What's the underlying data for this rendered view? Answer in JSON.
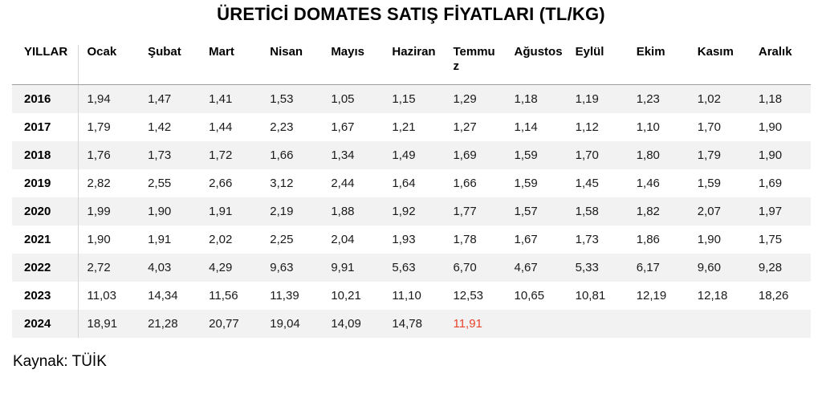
{
  "title": "ÜRETİCİ DOMATES SATIŞ FİYATLARI (TL/KG)",
  "source_note": "Kaynak: TÜİK",
  "table": {
    "year_header": "YILLAR",
    "month_headers": [
      "Ocak",
      "Şubat",
      "Mart",
      "Nisan",
      "Mayıs",
      "Haziran",
      "Temmuz",
      "Ağustos",
      "Eylül",
      "Ekim",
      "Kasım",
      "Aralık"
    ],
    "rows": [
      {
        "year": "2016",
        "values": [
          "1,94",
          "1,47",
          "1,41",
          "1,53",
          "1,05",
          "1,15",
          "1,29",
          "1,18",
          "1,19",
          "1,23",
          "1,02",
          "1,18"
        ]
      },
      {
        "year": "2017",
        "values": [
          "1,79",
          "1,42",
          "1,44",
          "2,23",
          "1,67",
          "1,21",
          "1,27",
          "1,14",
          "1,12",
          "1,10",
          "1,70",
          "1,90"
        ]
      },
      {
        "year": "2018",
        "values": [
          "1,76",
          "1,73",
          "1,72",
          "1,66",
          "1,34",
          "1,49",
          "1,69",
          "1,59",
          "1,70",
          "1,80",
          "1,79",
          "1,90"
        ]
      },
      {
        "year": "2019",
        "values": [
          "2,82",
          "2,55",
          "2,66",
          "3,12",
          "2,44",
          "1,64",
          "1,66",
          "1,59",
          "1,45",
          "1,46",
          "1,59",
          "1,69"
        ]
      },
      {
        "year": "2020",
        "values": [
          "1,99",
          "1,90",
          "1,91",
          "2,19",
          "1,88",
          "1,92",
          "1,77",
          "1,57",
          "1,58",
          "1,82",
          "2,07",
          "1,97"
        ]
      },
      {
        "year": "2021",
        "values": [
          "1,90",
          "1,91",
          "2,02",
          "2,25",
          "2,04",
          "1,93",
          "1,78",
          "1,67",
          "1,73",
          "1,86",
          "1,90",
          "1,75"
        ]
      },
      {
        "year": "2022",
        "values": [
          "2,72",
          "4,03",
          "4,29",
          "9,63",
          "9,91",
          "5,63",
          "6,70",
          "4,67",
          "5,33",
          "6,17",
          "9,60",
          "9,28"
        ]
      },
      {
        "year": "2023",
        "values": [
          "11,03",
          "14,34",
          "11,56",
          "11,39",
          "10,21",
          "11,10",
          "12,53",
          "10,65",
          "10,81",
          "12,19",
          "12,18",
          "18,26"
        ]
      },
      {
        "year": "2024",
        "values": [
          "18,91",
          "21,28",
          "20,77",
          "19,04",
          "14,09",
          "14,78",
          "11,91",
          "",
          "",
          "",
          "",
          ""
        ]
      }
    ],
    "highlight": {
      "year": "2024",
      "month": "Temmuz",
      "month_index": 6,
      "value": "11,91",
      "color": "#e8432d"
    }
  },
  "colors": {
    "row_stripe": "#f2f2f2",
    "divider": "#d4d4d4",
    "header_border": "#9d9d9d",
    "highlight_red": "#e8432d"
  },
  "chart_data": {
    "type": "table",
    "title": "ÜRETİCİ DOMATES SATIŞ FİYATLARI (TL/KG)",
    "source": "Kaynak: TÜİK",
    "columns": [
      "YILLAR",
      "Ocak",
      "Şubat",
      "Mart",
      "Nisan",
      "Mayıs",
      "Haziran",
      "Temmuz",
      "Ağustos",
      "Eylül",
      "Ekim",
      "Kasım",
      "Aralık"
    ],
    "rows": [
      [
        "2016",
        1.94,
        1.47,
        1.41,
        1.53,
        1.05,
        1.15,
        1.29,
        1.18,
        1.19,
        1.23,
        1.02,
        1.18
      ],
      [
        "2017",
        1.79,
        1.42,
        1.44,
        2.23,
        1.67,
        1.21,
        1.27,
        1.14,
        1.12,
        1.1,
        1.7,
        1.9
      ],
      [
        "2018",
        1.76,
        1.73,
        1.72,
        1.66,
        1.34,
        1.49,
        1.69,
        1.59,
        1.7,
        1.8,
        1.79,
        1.9
      ],
      [
        "2019",
        2.82,
        2.55,
        2.66,
        3.12,
        2.44,
        1.64,
        1.66,
        1.59,
        1.45,
        1.46,
        1.59,
        1.69
      ],
      [
        "2020",
        1.99,
        1.9,
        1.91,
        2.19,
        1.88,
        1.92,
        1.77,
        1.57,
        1.58,
        1.82,
        2.07,
        1.97
      ],
      [
        "2021",
        1.9,
        1.91,
        2.02,
        2.25,
        2.04,
        1.93,
        1.78,
        1.67,
        1.73,
        1.86,
        1.9,
        1.75
      ],
      [
        "2022",
        2.72,
        4.03,
        4.29,
        9.63,
        9.91,
        5.63,
        6.7,
        4.67,
        5.33,
        6.17,
        9.6,
        9.28
      ],
      [
        "2023",
        11.03,
        14.34,
        11.56,
        11.39,
        10.21,
        11.1,
        12.53,
        10.65,
        10.81,
        12.19,
        12.18,
        18.26
      ],
      [
        "2024",
        18.91,
        21.28,
        20.77,
        19.04,
        14.09,
        14.78,
        11.91,
        null,
        null,
        null,
        null,
        null
      ]
    ],
    "annotations": [
      {
        "cell": [
          "2024",
          "Temmuz"
        ],
        "value": 11.91,
        "style": "red-highlight"
      }
    ],
    "layout": {
      "striped_rows": true,
      "first_column_divider": true,
      "header_bottom_border": true
    }
  }
}
